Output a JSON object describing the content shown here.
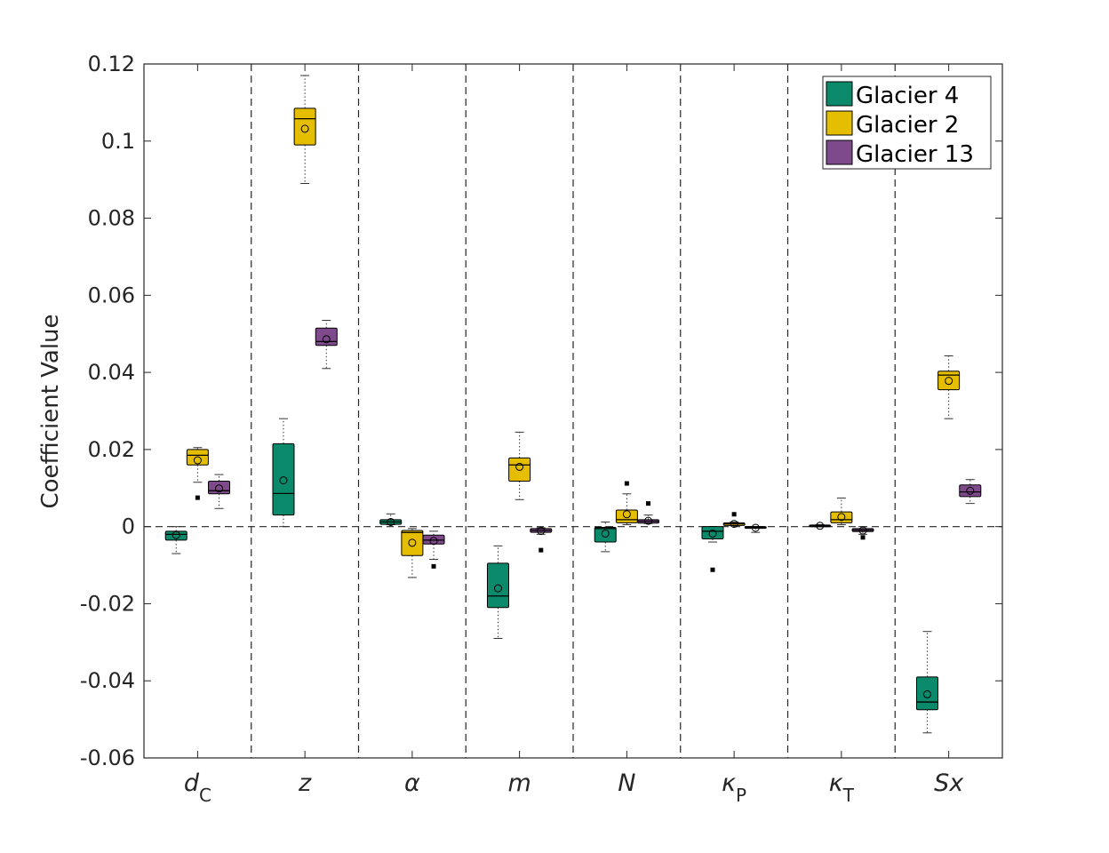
{
  "chart_data": {
    "type": "boxplot",
    "title": "",
    "xlabel": "",
    "ylabel": "Coefficient Value",
    "ylim": [
      -0.06,
      0.12
    ],
    "yticks": [
      -0.06,
      -0.04,
      -0.02,
      0,
      0.02,
      0.04,
      0.06,
      0.08,
      0.1,
      0.12
    ],
    "ytick_labels": [
      "-0.06",
      "-0.04",
      "-0.02",
      "0",
      "0.02",
      "0.04",
      "0.06",
      "0.08",
      "0.1",
      "0.12"
    ],
    "grid": false,
    "legend_position": "top-right",
    "categories": [
      {
        "main": "d",
        "sub": "C"
      },
      {
        "main": "z",
        "sub": ""
      },
      {
        "main": "α",
        "sub": ""
      },
      {
        "main": "m",
        "sub": ""
      },
      {
        "main": "N",
        "sub": ""
      },
      {
        "main": "κ",
        "sub": "P"
      },
      {
        "main": "κ",
        "sub": "T"
      },
      {
        "main": "Sx",
        "sub": ""
      }
    ],
    "series": [
      {
        "name": "Glacier 4",
        "color": "#0b8a6b",
        "boxes": [
          {
            "whisker_low": -0.007,
            "q1": -0.0035,
            "median": -0.002,
            "q3": -0.0012,
            "whisker_high": 0,
            "mean": -0.0022,
            "outliers": []
          },
          {
            "whisker_low": 0,
            "q1": 0.003,
            "median": 0.0086,
            "q3": 0.0215,
            "whisker_high": 0.028,
            "mean": 0.012,
            "outliers": []
          },
          {
            "whisker_low": 0.0005,
            "q1": 0.0006,
            "median": 0.0012,
            "q3": 0.0018,
            "whisker_high": 0.0033,
            "mean": 0.0012,
            "outliers": []
          },
          {
            "whisker_low": -0.029,
            "q1": -0.021,
            "median": -0.018,
            "q3": -0.0095,
            "whisker_high": -0.005,
            "mean": -0.016,
            "outliers": []
          },
          {
            "whisker_low": -0.0065,
            "q1": -0.004,
            "median": -0.0005,
            "q3": -0.0002,
            "whisker_high": 0.0012,
            "mean": -0.0018,
            "outliers": []
          },
          {
            "whisker_low": -0.004,
            "q1": -0.0032,
            "median": -0.0012,
            "q3": 0,
            "whisker_high": 0,
            "mean": -0.0018,
            "outliers": [
              -0.0112
            ]
          },
          {
            "whisker_low": 0,
            "q1": 0.0001,
            "median": 0.0002,
            "q3": 0.0004,
            "whisker_high": 0.0005,
            "mean": 0.0002,
            "outliers": []
          },
          {
            "whisker_low": -0.0535,
            "q1": -0.0475,
            "median": -0.0455,
            "q3": -0.039,
            "whisker_high": -0.0272,
            "mean": -0.0435,
            "outliers": []
          }
        ]
      },
      {
        "name": "Glacier 2",
        "color": "#e5be01",
        "boxes": [
          {
            "whisker_low": 0.0115,
            "q1": 0.016,
            "median": 0.0185,
            "q3": 0.02,
            "whisker_high": 0.0205,
            "mean": 0.0172,
            "outliers": [
              0.0075
            ]
          },
          {
            "whisker_low": 0.089,
            "q1": 0.099,
            "median": 0.1058,
            "q3": 0.1085,
            "whisker_high": 0.117,
            "mean": 0.1032,
            "outliers": []
          },
          {
            "whisker_low": -0.0132,
            "q1": -0.0075,
            "median": -0.0015,
            "q3": -0.001,
            "whisker_high": -0.0005,
            "mean": -0.0042,
            "outliers": []
          },
          {
            "whisker_low": 0.007,
            "q1": 0.0118,
            "median": 0.016,
            "q3": 0.0178,
            "whisker_high": 0.0245,
            "mean": 0.0155,
            "outliers": []
          },
          {
            "whisker_low": 0.0005,
            "q1": 0.001,
            "median": 0.0018,
            "q3": 0.0043,
            "whisker_high": 0.0085,
            "mean": 0.0032,
            "outliers": [
              0.0112
            ]
          },
          {
            "whisker_low": 0.0002,
            "q1": 0.0003,
            "median": 0.0007,
            "q3": 0.001,
            "whisker_high": 0.0012,
            "mean": 0.0007,
            "outliers": [
              0.0032
            ]
          },
          {
            "whisker_low": 0.0005,
            "q1": 0.001,
            "median": 0.0018,
            "q3": 0.0038,
            "whisker_high": 0.0074,
            "mean": 0.0025,
            "outliers": []
          },
          {
            "whisker_low": 0.028,
            "q1": 0.0355,
            "median": 0.0393,
            "q3": 0.0403,
            "whisker_high": 0.0443,
            "mean": 0.0378,
            "outliers": []
          }
        ]
      },
      {
        "name": "Glacier 13",
        "color": "#7e4a8b",
        "boxes": [
          {
            "whisker_low": 0.0047,
            "q1": 0.0085,
            "median": 0.0093,
            "q3": 0.0118,
            "whisker_high": 0.0135,
            "mean": 0.0099,
            "outliers": []
          },
          {
            "whisker_low": 0.041,
            "q1": 0.047,
            "median": 0.048,
            "q3": 0.0515,
            "whisker_high": 0.0535,
            "mean": 0.0486,
            "outliers": []
          },
          {
            "whisker_low": -0.0085,
            "q1": -0.0045,
            "median": -0.0035,
            "q3": -0.0022,
            "whisker_high": -0.0012,
            "mean": -0.0037,
            "outliers": [
              -0.0103
            ]
          },
          {
            "whisker_low": -0.002,
            "q1": -0.0015,
            "median": -0.001,
            "q3": -0.0005,
            "whisker_high": -0.0003,
            "mean": -0.0011,
            "outliers": [
              -0.0061
            ]
          },
          {
            "whisker_low": 0.0008,
            "q1": 0.0009,
            "median": 0.0014,
            "q3": 0.0018,
            "whisker_high": 0.003,
            "mean": 0.0015,
            "outliers": [
              0.006
            ]
          },
          {
            "whisker_low": -0.0015,
            "q1": -0.0004,
            "median": -0.0002,
            "q3": 0,
            "whisker_high": 0,
            "mean": -0.0003,
            "outliers": []
          },
          {
            "whisker_low": -0.002,
            "q1": -0.0013,
            "median": -0.0009,
            "q3": -0.0005,
            "whisker_high": 0,
            "mean": -0.001,
            "outliers": [
              -0.0028
            ]
          },
          {
            "whisker_low": 0.006,
            "q1": 0.0078,
            "median": 0.009,
            "q3": 0.0108,
            "whisker_high": 0.0122,
            "mean": 0.0093,
            "outliers": []
          }
        ]
      }
    ]
  }
}
